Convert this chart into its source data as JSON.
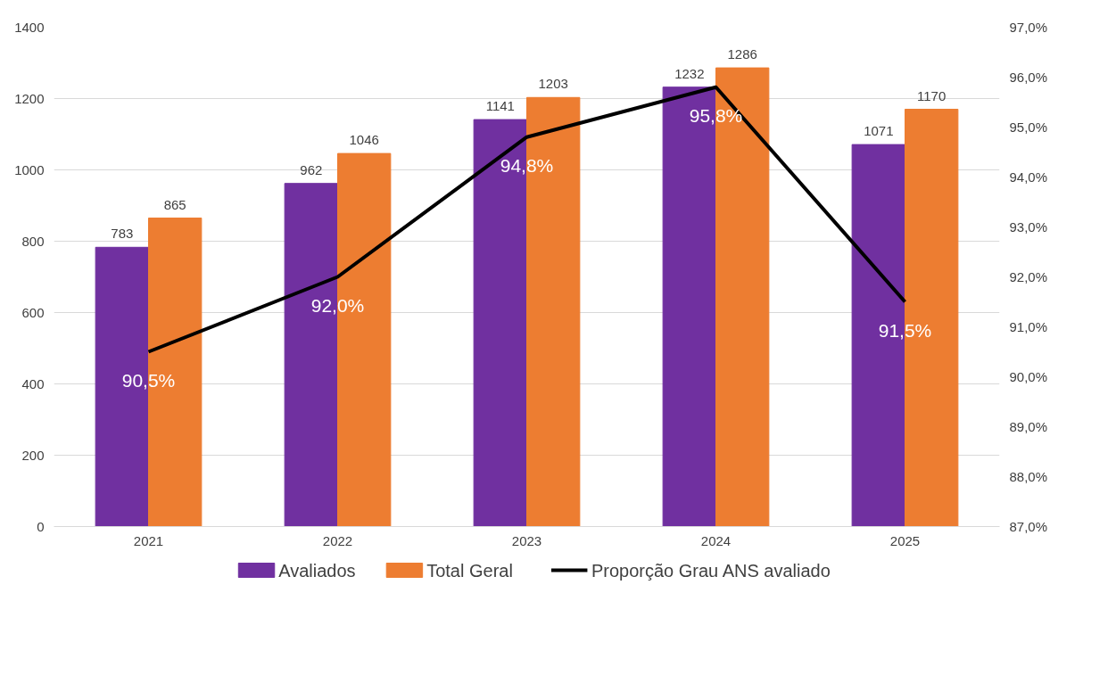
{
  "chart_data": {
    "type": "bar",
    "categories": [
      "2021",
      "2022",
      "2023",
      "2024",
      "2025"
    ],
    "series": [
      {
        "name": "Avaliados",
        "color": "#7030a0",
        "values": [
          783,
          962,
          1141,
          1232,
          1071
        ],
        "value_labels": [
          "783",
          "962",
          "1141",
          "1232",
          "1071"
        ]
      },
      {
        "name": "Total Geral",
        "color": "#ed7d31",
        "values": [
          865,
          1046,
          1203,
          1286,
          1170
        ],
        "value_labels": [
          "865",
          "1046",
          "1203",
          "1286",
          "1170"
        ]
      },
      {
        "name": "Proporção Grau ANS avaliado",
        "type": "line",
        "axis": "y2",
        "color": "#000000",
        "values": [
          90.5,
          92.0,
          94.8,
          95.8,
          91.5
        ],
        "value_labels": [
          "90,5%",
          "92,0%",
          "94,8%",
          "95,8%",
          "91,5%"
        ]
      }
    ],
    "ylim": [
      0,
      1400
    ],
    "yticks": [
      0,
      200,
      400,
      600,
      800,
      1000,
      1200,
      1400
    ],
    "y2lim": [
      87,
      97
    ],
    "y2ticks": [
      {
        "value": 87,
        "label": "87,0%"
      },
      {
        "value": 88,
        "label": "88,0%"
      },
      {
        "value": 89,
        "label": "89,0%"
      },
      {
        "value": 90,
        "label": "90,0%"
      },
      {
        "value": 91,
        "label": "91,0%"
      },
      {
        "value": 92,
        "label": "92,0%"
      },
      {
        "value": 93,
        "label": "93,0%"
      },
      {
        "value": 94,
        "label": "94,0%"
      },
      {
        "value": 95,
        "label": "95,0%"
      },
      {
        "value": 96,
        "label": "96,0%"
      },
      {
        "value": 97,
        "label": "97,0%"
      }
    ],
    "grid": "y",
    "legend": "bottom",
    "line_style": "solid",
    "marker": "none"
  }
}
